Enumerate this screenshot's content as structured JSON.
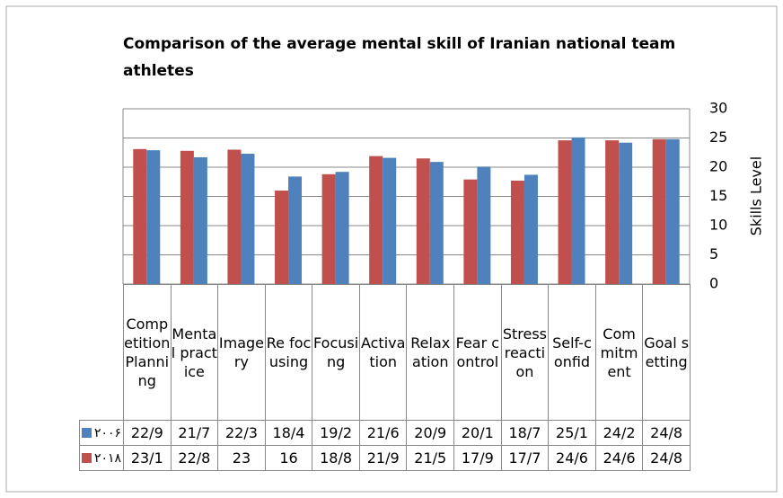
{
  "chart_data": {
    "type": "bar",
    "title": "Comparison of the average mental skill of Iranian national team athletes",
    "y_label": "Skills Level",
    "categories": [
      "Competition Planning",
      "Mental practice",
      "Imagery",
      "Re focusing",
      "Focusing",
      "Activation",
      "Relaxation",
      "Fear control",
      "Stress reaction",
      "Self-confid",
      "Commitment",
      "Goal setting"
    ],
    "series": [
      {
        "name": "۲۰۰۶",
        "color": "#4f81bd",
        "values": [
          22.9,
          21.7,
          22.3,
          18.4,
          19.2,
          21.6,
          20.9,
          20.1,
          18.7,
          25.1,
          24.2,
          24.8
        ],
        "value_labels": [
          "22/9",
          "21/7",
          "22/3",
          "18/4",
          "19/2",
          "21/6",
          "20/9",
          "20/1",
          "18/7",
          "25/1",
          "24/2",
          "24/8"
        ]
      },
      {
        "name": "۲۰۱۸",
        "color": "#c0504d",
        "values": [
          23.1,
          22.8,
          23,
          16,
          18.8,
          21.9,
          21.5,
          17.9,
          17.7,
          24.6,
          24.6,
          24.8
        ],
        "value_labels": [
          "23/1",
          "22/8",
          "23",
          "16",
          "18/8",
          "21/9",
          "21/5",
          "17/9",
          "17/7",
          "24/6",
          "24/6",
          "24/8"
        ]
      }
    ],
    "ylim": [
      0,
      30
    ],
    "yticks": [
      0,
      5,
      10,
      15,
      20,
      25,
      30
    ],
    "grid": true
  }
}
